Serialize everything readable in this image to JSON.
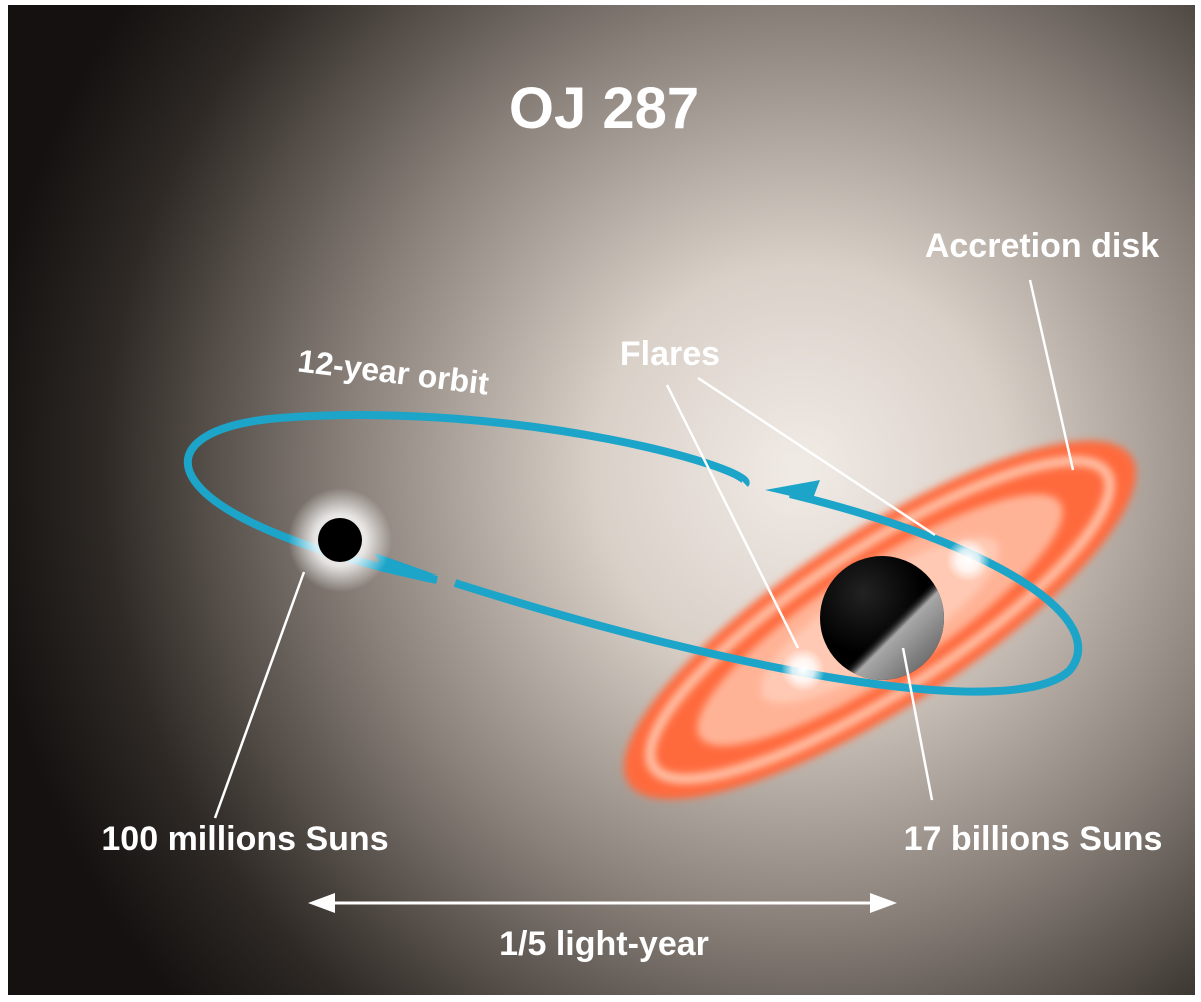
{
  "title": "OJ 287",
  "labels": {
    "accretion_disk": "Accretion disk",
    "flares": "Flares",
    "orbit": "12-year orbit",
    "small_black_hole": "100 millions Suns",
    "large_black_hole": "17 billions Suns",
    "distance": "1/5 light-year"
  }
}
